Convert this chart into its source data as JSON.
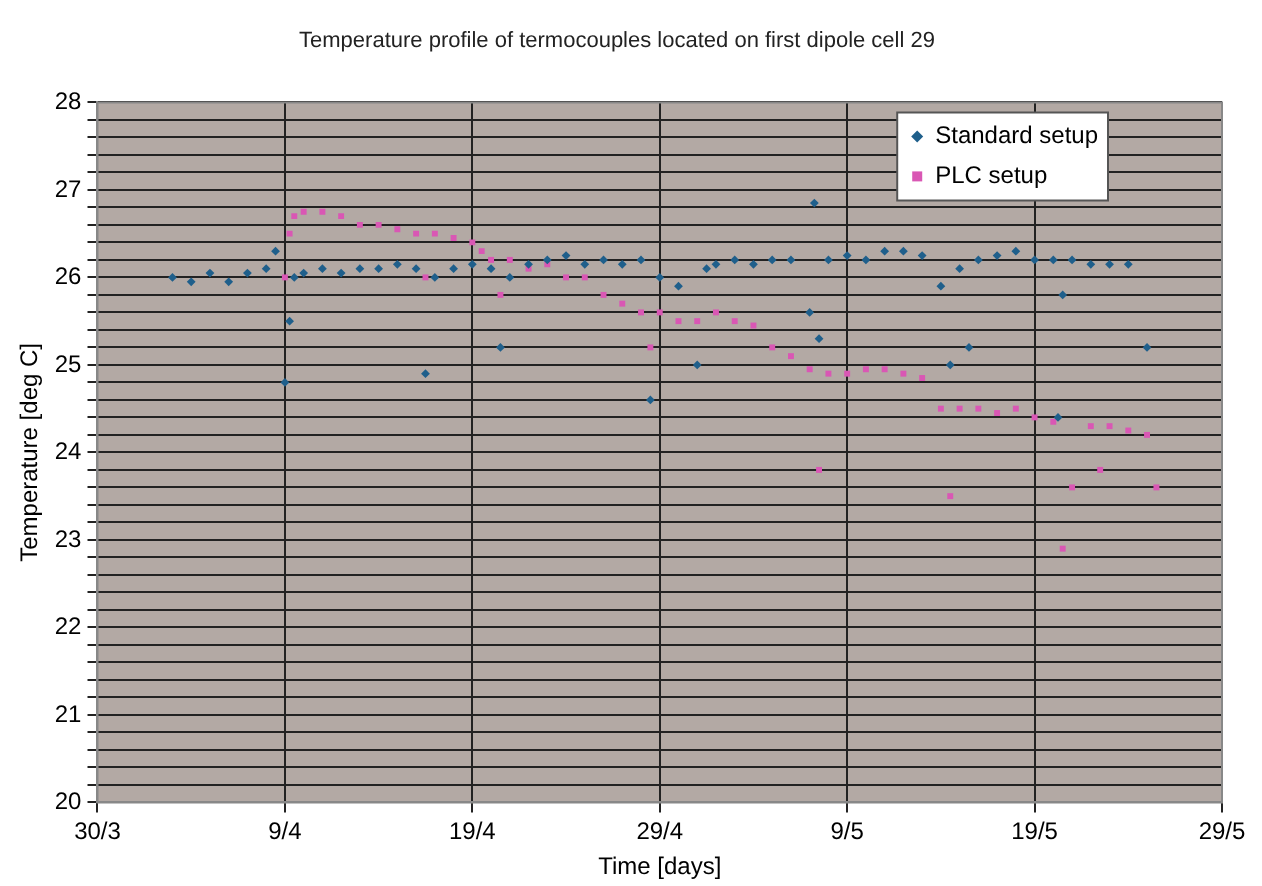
{
  "chart_data": {
    "type": "scatter",
    "title": "Temperature profile of termocouples located on first dipole cell 29",
    "xlabel": "Time [days]",
    "ylabel": "Temperature [deg C]",
    "xlim": [
      "--03-30",
      "--05-29"
    ],
    "xticks": [
      {
        "value": "--03-30",
        "label": "30/3"
      },
      {
        "value": "--04-09",
        "label": "9/4"
      },
      {
        "value": "--04-19",
        "label": "19/4"
      },
      {
        "value": "--04-29",
        "label": "29/4"
      },
      {
        "value": "--05-09",
        "label": "9/5"
      },
      {
        "value": "--05-19",
        "label": "19/5"
      },
      {
        "value": "--05-29",
        "label": "29/5"
      }
    ],
    "ylim": [
      20,
      28
    ],
    "yticks": [
      20,
      {
        "value": 20.2,
        "label": null
      },
      {
        "value": 20.4,
        "label": null
      },
      {
        "value": 20.6,
        "label": null
      },
      {
        "value": 20.8,
        "label": null
      },
      21,
      {
        "value": 21.2,
        "label": null
      },
      {
        "value": 21.4,
        "label": null
      },
      {
        "value": 21.6,
        "label": null
      },
      {
        "value": 21.8,
        "label": null
      },
      22,
      {
        "value": 22.2,
        "label": null
      },
      {
        "value": 22.4,
        "label": null
      },
      {
        "value": 22.6,
        "label": null
      },
      {
        "value": 22.8,
        "label": null
      },
      23,
      {
        "value": 23.2,
        "label": null
      },
      {
        "value": 23.4,
        "label": null
      },
      {
        "value": 23.6,
        "label": null
      },
      {
        "value": 23.8,
        "label": null
      },
      24,
      {
        "value": 24.2,
        "label": null
      },
      {
        "value": 24.4,
        "label": null
      },
      {
        "value": 24.6,
        "label": null
      },
      {
        "value": 24.8,
        "label": null
      },
      25,
      {
        "value": 25.2,
        "label": null
      },
      {
        "value": 25.4,
        "label": null
      },
      {
        "value": 25.6,
        "label": null
      },
      {
        "value": 25.8,
        "label": null
      },
      26,
      {
        "value": 26.2,
        "label": null
      },
      {
        "value": 26.4,
        "label": null
      },
      {
        "value": 26.6,
        "label": null
      },
      {
        "value": 26.8,
        "label": null
      },
      27,
      {
        "value": 27.2,
        "label": null
      },
      {
        "value": 27.4,
        "label": null
      },
      {
        "value": 27.6,
        "label": null
      },
      {
        "value": 27.8,
        "label": null
      },
      28
    ],
    "grid": true,
    "legend": "top right",
    "series": [
      {
        "name": "Standard setup",
        "color": "#1f5f8b",
        "marker": "diamond",
        "x": [
          "--04-03",
          "--04-04",
          "--04-05",
          "--04-06",
          "--04-07",
          "--04-08",
          "--04-08T12:00",
          "--04-09",
          "--04-09T06:00",
          "--04-09T12:00",
          "--04-10",
          "--04-11",
          "--04-12",
          "--04-13",
          "--04-14",
          "--04-15",
          "--04-16",
          "--04-16T12:00",
          "--04-17",
          "--04-18",
          "--04-19",
          "--04-20",
          "--04-20T12:00",
          "--04-21",
          "--04-22",
          "--04-23",
          "--04-24",
          "--04-25",
          "--04-26",
          "--04-27",
          "--04-28",
          "--04-28T12:00",
          "--04-29",
          "--04-30",
          "--05-01",
          "--05-01T12:00",
          "--05-02",
          "--05-03",
          "--05-04",
          "--05-05",
          "--05-06",
          "--05-07",
          "--05-07T06:00",
          "--05-07T12:00",
          "--05-08",
          "--05-09",
          "--05-10",
          "--05-11",
          "--05-12",
          "--05-13",
          "--05-14",
          "--05-14T12:00",
          "--05-15",
          "--05-15T12:00",
          "--05-16",
          "--05-17",
          "--05-18",
          "--05-19",
          "--05-20",
          "--05-20T06:00",
          "--05-20T12:00",
          "--05-21",
          "--05-22",
          "--05-23",
          "--05-24",
          "--05-25"
        ],
        "values": [
          26.0,
          25.95,
          26.05,
          25.95,
          26.05,
          26.1,
          26.3,
          24.8,
          25.5,
          26.0,
          26.05,
          26.1,
          26.05,
          26.1,
          26.1,
          26.15,
          26.1,
          24.9,
          26.0,
          26.1,
          26.15,
          26.1,
          25.2,
          26.0,
          26.15,
          26.2,
          26.25,
          26.15,
          26.2,
          26.15,
          26.2,
          24.6,
          26.0,
          25.9,
          25.0,
          26.1,
          26.15,
          26.2,
          26.15,
          26.2,
          26.2,
          25.6,
          26.85,
          25.3,
          26.2,
          26.25,
          26.2,
          26.3,
          26.3,
          26.25,
          25.9,
          25.0,
          26.1,
          25.2,
          26.2,
          26.25,
          26.3,
          26.2,
          26.2,
          24.4,
          25.8,
          26.2,
          26.15,
          26.15,
          26.15,
          25.2
        ]
      },
      {
        "name": "PLC setup",
        "color": "#d957b4",
        "marker": "square",
        "x": [
          "--04-09",
          "--04-09T06:00",
          "--04-09T12:00",
          "--04-10",
          "--04-11",
          "--04-12",
          "--04-13",
          "--04-14",
          "--04-15",
          "--04-16",
          "--04-16T12:00",
          "--04-17",
          "--04-18",
          "--04-19",
          "--04-19T12:00",
          "--04-20",
          "--04-20T12:00",
          "--04-21",
          "--04-22",
          "--04-23",
          "--04-24",
          "--04-25",
          "--04-26",
          "--04-27",
          "--04-28",
          "--04-28T12:00",
          "--04-29",
          "--04-30",
          "--05-01",
          "--05-02",
          "--05-03",
          "--05-04",
          "--05-05",
          "--05-06",
          "--05-07",
          "--05-07T12:00",
          "--05-08",
          "--05-09",
          "--05-10",
          "--05-11",
          "--05-12",
          "--05-13",
          "--05-14",
          "--05-14T12:00",
          "--05-15",
          "--05-16",
          "--05-17",
          "--05-18",
          "--05-19",
          "--05-20",
          "--05-20T12:00",
          "--05-21",
          "--05-22",
          "--05-22T12:00",
          "--05-23",
          "--05-24",
          "--05-25",
          "--05-25T12:00"
        ],
        "values": [
          26.0,
          26.5,
          26.7,
          26.75,
          26.75,
          26.7,
          26.6,
          26.6,
          26.55,
          26.5,
          26.0,
          26.5,
          26.45,
          26.4,
          26.3,
          26.2,
          25.8,
          26.2,
          26.1,
          26.15,
          26.0,
          26.0,
          25.8,
          25.7,
          25.6,
          25.2,
          25.6,
          25.5,
          25.5,
          25.6,
          25.5,
          25.45,
          25.2,
          25.1,
          24.95,
          23.8,
          24.9,
          24.9,
          24.95,
          24.95,
          24.9,
          24.85,
          24.5,
          23.5,
          24.5,
          24.5,
          24.45,
          24.5,
          24.4,
          24.35,
          22.9,
          23.6,
          24.3,
          23.8,
          24.3,
          24.25,
          24.2,
          23.6
        ]
      }
    ]
  }
}
